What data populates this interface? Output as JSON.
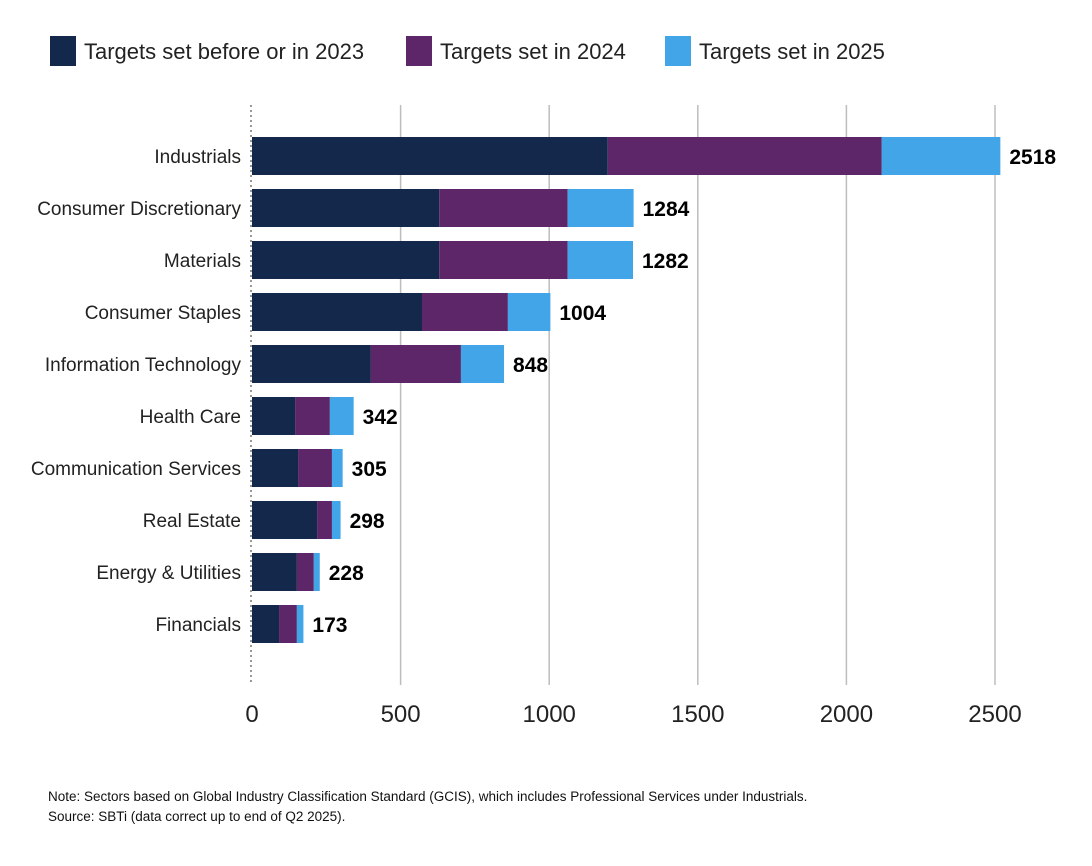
{
  "chart_data": {
    "type": "bar",
    "orientation": "horizontal",
    "stacked": true,
    "categories": [
      "Industrials",
      "Consumer Discretionary",
      "Materials",
      "Consumer Staples",
      "Information Technology",
      "Health Care",
      "Communication Services",
      "Real Estate",
      "Energy & Utilities",
      "Financials"
    ],
    "series": [
      {
        "name": "Targets set before or in 2023",
        "color": "#14284b",
        "values": [
          1197,
          630,
          630,
          572,
          400,
          145,
          155,
          219,
          151,
          91
        ]
      },
      {
        "name": "Targets set in 2024",
        "color": "#5c2669",
        "values": [
          922,
          432,
          432,
          289,
          303,
          117,
          114,
          50,
          57,
          60
        ]
      },
      {
        "name": "Targets set in 2025",
        "color": "#41a5e8",
        "values": [
          399,
          222,
          220,
          143,
          145,
          80,
          36,
          29,
          20,
          22
        ]
      }
    ],
    "totals": [
      "2518",
      "1284",
      "1282",
      "1004",
      "848",
      "342",
      "305",
      "298",
      "228",
      "173"
    ],
    "xlim": [
      0,
      2500
    ],
    "xticks": [
      "0",
      "500",
      "1000",
      "1500",
      "2000",
      "2500"
    ],
    "grid": "vertical",
    "legend": "top"
  },
  "notes": {
    "note": "Note: Sectors based on Global Industry Classification Standard (GCIS), which includes Professional Services under Industrials.",
    "source": "Source: SBTi (data correct up to end of Q2  2025)."
  }
}
